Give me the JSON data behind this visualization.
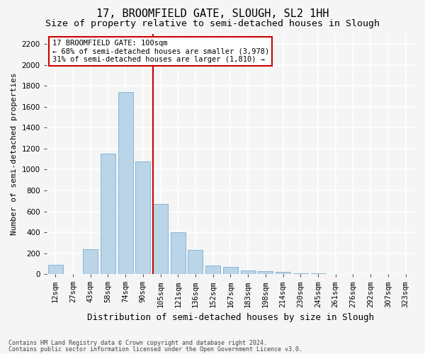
{
  "title": "17, BROOMFIELD GATE, SLOUGH, SL2 1HH",
  "subtitle": "Size of property relative to semi-detached houses in Slough",
  "xlabel": "Distribution of semi-detached houses by size in Slough",
  "ylabel": "Number of semi-detached properties",
  "categories": [
    "12sqm",
    "27sqm",
    "43sqm",
    "58sqm",
    "74sqm",
    "90sqm",
    "105sqm",
    "121sqm",
    "136sqm",
    "152sqm",
    "167sqm",
    "183sqm",
    "198sqm",
    "214sqm",
    "230sqm",
    "245sqm",
    "261sqm",
    "276sqm",
    "292sqm",
    "307sqm",
    "323sqm"
  ],
  "values": [
    90,
    0,
    240,
    1150,
    1740,
    1080,
    670,
    400,
    230,
    80,
    70,
    35,
    30,
    20,
    10,
    10,
    0,
    0,
    0,
    0,
    0
  ],
  "bar_color": "#bad4e8",
  "bar_edge_color": "#7aafd4",
  "highlight_index": 6,
  "highlight_color": "#cc0000",
  "annotation_text": "17 BROOMFIELD GATE: 100sqm\n← 68% of semi-detached houses are smaller (3,978)\n31% of semi-detached houses are larger (1,810) →",
  "annotation_box_facecolor": "#ffffff",
  "annotation_box_edgecolor": "#cc0000",
  "ylim": [
    0,
    2300
  ],
  "yticks": [
    0,
    200,
    400,
    600,
    800,
    1000,
    1200,
    1400,
    1600,
    1800,
    2000,
    2200
  ],
  "footnote1": "Contains HM Land Registry data © Crown copyright and database right 2024.",
  "footnote2": "Contains public sector information licensed under the Open Government Licence v3.0.",
  "fig_facecolor": "#f5f5f5",
  "ax_facecolor": "#f5f5f5",
  "grid_color": "#ffffff",
  "title_fontsize": 11,
  "subtitle_fontsize": 9.5,
  "ylabel_fontsize": 8,
  "xlabel_fontsize": 9,
  "tick_fontsize": 7.5,
  "annotation_fontsize": 7.5,
  "footnote_fontsize": 6
}
